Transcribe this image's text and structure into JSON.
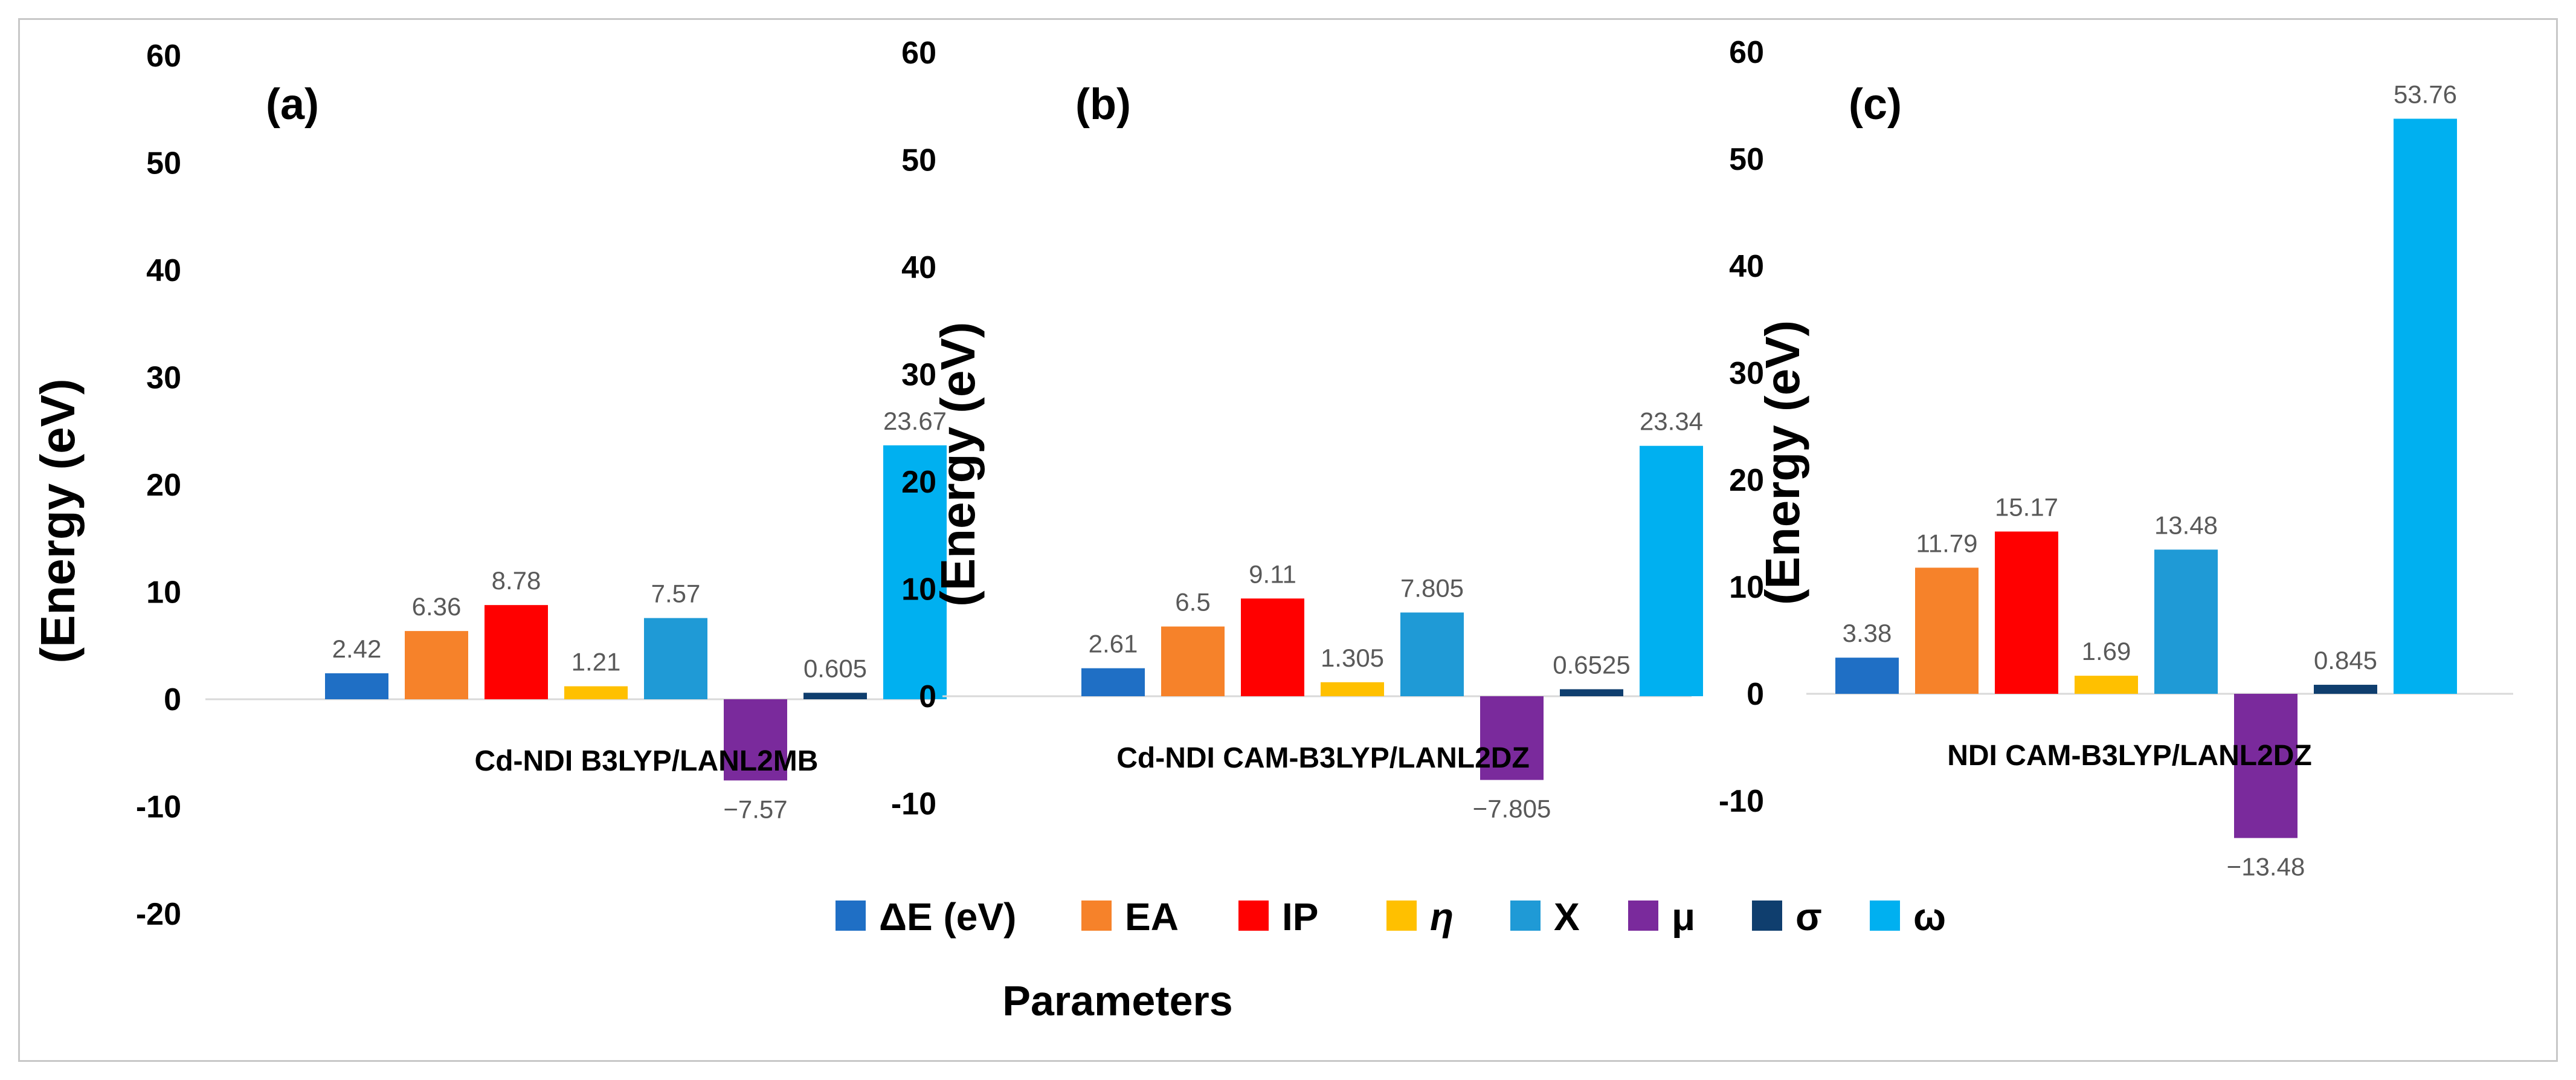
{
  "chart_data": {
    "type": "bar",
    "xlabel": "Parameters",
    "legend_position": "bottom",
    "series_colors": [
      "#1f6fc5",
      "#f6822a",
      "#ff0000",
      "#ffc000",
      "#1f9ad6",
      "#7a2a9c",
      "#0f3e6e",
      "#00b0f0"
    ],
    "legend": [
      {
        "name": "ΔE (eV)",
        "color": "#1f6fc5"
      },
      {
        "name": "EA",
        "color": "#f6822a"
      },
      {
        "name": "IP",
        "color": "#ff0000"
      },
      {
        "name": "η",
        "color": "#ffc000",
        "italic": true
      },
      {
        "name": "X",
        "color": "#1f9ad6"
      },
      {
        "name": "μ",
        "color": "#7a2a9c"
      },
      {
        "name": "σ",
        "color": "#0f3e6e"
      },
      {
        "name": "ω",
        "color": "#00b0f0"
      }
    ],
    "panels": [
      {
        "letter": "(a)",
        "category": "Cd-NDI B3LYP/LANL2MB",
        "ylabel": "(Energy (eV)",
        "ylim": [
          -20,
          60
        ],
        "yticks": [
          "60",
          "50",
          "40",
          "30",
          "20",
          "10",
          "0",
          "-10",
          "-20"
        ],
        "values": [
          2.42,
          6.36,
          8.78,
          1.21,
          7.57,
          -7.57,
          0.605,
          23.67
        ],
        "labels": [
          "2.42",
          "6.36",
          "8.78",
          "1.21",
          "7.57",
          "−7.57",
          "0.605",
          "23.67"
        ]
      },
      {
        "letter": "(b)",
        "category": "Cd-NDI CAM-B3LYP/LANL2DZ",
        "ylabel": "(Energy (eV)",
        "ylim": [
          -10,
          60
        ],
        "yticks": [
          "60",
          "50",
          "40",
          "30",
          "20",
          "10",
          "0",
          "-10"
        ],
        "values": [
          2.61,
          6.5,
          9.11,
          1.305,
          7.805,
          -7.805,
          0.6525,
          23.34
        ],
        "labels": [
          "2.61",
          "6.5",
          "9.11",
          "1.305",
          "7.805",
          "−7.805",
          "0.6525",
          "23.34"
        ]
      },
      {
        "letter": "(c)",
        "category": "NDI CAM-B3LYP/LANL2DZ",
        "ylabel": "(Energy (eV)",
        "ylim": [
          -10,
          60
        ],
        "yticks": [
          "60",
          "50",
          "40",
          "30",
          "20",
          "10",
          "0",
          "-10"
        ],
        "values": [
          3.38,
          11.79,
          15.17,
          1.69,
          13.48,
          -13.48,
          0.845,
          53.76
        ],
        "labels": [
          "3.38",
          "11.79",
          "15.17",
          "1.69",
          "13.48",
          "−13.48",
          "0.845",
          "53.76"
        ]
      }
    ]
  }
}
